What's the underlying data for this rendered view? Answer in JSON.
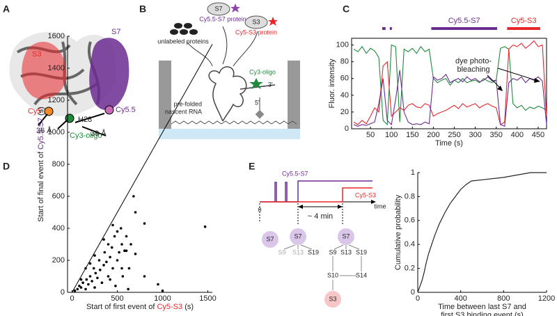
{
  "panel_labels": [
    "A",
    "B",
    "C",
    "D",
    "E"
  ],
  "panel_a": {
    "s3": "S3",
    "s7": "S7",
    "cy5": "Cy5",
    "cy55": "Cy5.5",
    "cy3": "Cy3-oligo",
    "h28": "H28",
    "d1": "36 Å",
    "d2": "39 Å"
  },
  "panel_b": {
    "s7": "S7",
    "s3": "S3",
    "unlabeled": "unlabeled proteins",
    "s7_protein": "Cy5.5-S7 protein",
    "s3_protein": "Cy5-S3 protein",
    "cy3": "Cy3-oligo",
    "end3": "3'",
    "end5": "5'",
    "rna": [
      "pre-folded",
      "nascent RNA"
    ]
  },
  "panel_e_diagram": {
    "s7_trace": "Cy5.5-S7",
    "s3_trace": "Cy5-S3",
    "time": "time",
    "zero": "0",
    "interval": "~ 4 min",
    "nodes": [
      "S7",
      "S7",
      "S9",
      "S13",
      "S19",
      "S7",
      "S9",
      "S13",
      "S19",
      "S10",
      "S14",
      "S3"
    ]
  },
  "chart_data": [
    {
      "type": "line",
      "xlabel": "Time (s)",
      "ylabel": "Fluor. intensity",
      "x": [
        10,
        20,
        30,
        40,
        50,
        60,
        70,
        80,
        90,
        100,
        110,
        120,
        130,
        140,
        150,
        160,
        170,
        180,
        190,
        200,
        210,
        220,
        230,
        240,
        250,
        260,
        270,
        280,
        290,
        300,
        310,
        320,
        330,
        340,
        350,
        360,
        370,
        380,
        390,
        400,
        410,
        420,
        430,
        440,
        450,
        460,
        470
      ],
      "series": [
        {
          "name": "Cy3",
          "color": "#1f8a3c",
          "values": [
            95,
            92,
            98,
            90,
            96,
            93,
            85,
            10,
            5,
            100,
            98,
            8,
            95,
            92,
            96,
            90,
            98,
            92,
            95,
            60,
            55,
            58,
            60,
            52,
            58,
            55,
            60,
            55,
            57,
            58,
            55,
            60,
            57,
            55,
            58,
            96,
            98,
            95,
            30,
            25,
            28,
            22,
            26,
            24,
            27,
            25,
            22
          ]
        },
        {
          "name": "Cy5",
          "color": "#e8262a",
          "values": [
            8,
            5,
            10,
            6,
            15,
            25,
            20,
            75,
            80,
            15,
            20,
            25,
            22,
            28,
            30,
            26,
            25,
            30,
            28,
            15,
            18,
            20,
            22,
            25,
            28,
            24,
            30,
            26,
            28,
            30,
            25,
            28,
            30,
            27,
            25,
            5,
            8,
            95,
            100,
            98,
            102,
            96,
            100,
            105,
            98,
            100,
            15
          ]
        },
        {
          "name": "Cy5.5",
          "color": "#6a2c91",
          "values": [
            5,
            3,
            5,
            4,
            6,
            8,
            30,
            60,
            10,
            5,
            35,
            70,
            20,
            8,
            5,
            6,
            5,
            8,
            6,
            62,
            58,
            60,
            65,
            55,
            58,
            60,
            56,
            62,
            58,
            60,
            56,
            58,
            62,
            57,
            58,
            5,
            3,
            55,
            60,
            58,
            62,
            55,
            60,
            58,
            62,
            57,
            5
          ]
        }
      ],
      "xlim": [
        5,
        470
      ],
      "ylim": [
        0,
        108
      ],
      "xticks": [
        50,
        100,
        150,
        200,
        250,
        300,
        350,
        400,
        450
      ],
      "yticks": [
        0,
        20,
        40,
        60,
        80,
        100
      ],
      "annotation": [
        "dye photo-",
        "bleaching"
      ],
      "event_bars": [
        {
          "name": "Cy5.5-S7",
          "color": "#6a2c91",
          "intervals": [
            [
              78,
              86
            ],
            [
              96,
              101
            ],
            [
              195,
              352
            ]
          ]
        },
        {
          "name": "Cy5-S3",
          "color": "#e8262a",
          "intervals": [
            [
              376,
              455
            ]
          ]
        }
      ]
    },
    {
      "type": "scatter",
      "xlabel": [
        "Start of first event of ",
        "Cy5-S3",
        " (s)"
      ],
      "ylabel": [
        "Start of final event of ",
        "Cy5.5-S7",
        " (s)"
      ],
      "label_colors": [
        "#222",
        "#e8262a",
        "#222"
      ],
      "ylabel_colors": [
        "#222",
        "#6a2c91",
        "#222"
      ],
      "color": "#000",
      "x": [
        30,
        60,
        80,
        100,
        120,
        150,
        160,
        180,
        200,
        220,
        240,
        250,
        260,
        280,
        300,
        310,
        330,
        350,
        360,
        380,
        400,
        400,
        420,
        440,
        450,
        470,
        480,
        500,
        500,
        520,
        540,
        550,
        560,
        580,
        600,
        620,
        630,
        650,
        680,
        700,
        700,
        800,
        800,
        950,
        1000,
        1470,
        150,
        200,
        350,
        450,
        550,
        250,
        100,
        420,
        600
      ],
      "values": [
        10,
        20,
        40,
        30,
        60,
        20,
        80,
        50,
        100,
        70,
        150,
        30,
        120,
        90,
        200,
        140,
        60,
        170,
        250,
        190,
        100,
        300,
        220,
        280,
        150,
        350,
        40,
        200,
        380,
        250,
        400,
        300,
        100,
        260,
        350,
        20,
        150,
        300,
        600,
        500,
        240,
        430,
        100,
        50,
        10,
        410,
        150,
        180,
        330,
        420,
        150,
        230,
        80,
        80,
        260
      ],
      "xlim": [
        -50,
        1550
      ],
      "ylim": [
        0,
        1600
      ],
      "xticks": [
        0,
        500,
        1000,
        1500
      ],
      "yticks": [
        0,
        200,
        400,
        600,
        800,
        1000,
        1200,
        1400,
        1600
      ]
    },
    {
      "type": "line",
      "xlabel": [
        "Time between last S7 and",
        "first S3 binding event (s)"
      ],
      "ylabel": "Cumulative probability",
      "color": "#222",
      "x": [
        0,
        20,
        40,
        60,
        80,
        100,
        130,
        160,
        200,
        250,
        300,
        350,
        400,
        450,
        500,
        600,
        800,
        1050,
        1200
      ],
      "values": [
        0,
        0.05,
        0.1,
        0.17,
        0.25,
        0.32,
        0.4,
        0.48,
        0.57,
        0.66,
        0.74,
        0.8,
        0.86,
        0.9,
        0.93,
        0.94,
        0.96,
        1,
        1
      ],
      "xlim": [
        0,
        1200
      ],
      "ylim": [
        0,
        1
      ],
      "xticks": [
        0,
        400,
        800,
        1200
      ],
      "yticks": [
        0,
        0.2,
        0.4,
        0.6,
        0.8,
        1
      ]
    }
  ]
}
